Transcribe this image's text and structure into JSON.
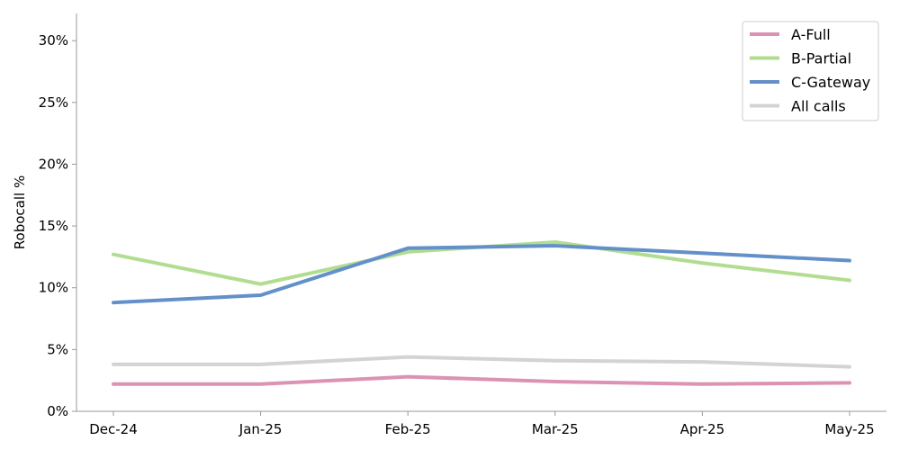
{
  "chart_data": {
    "type": "line",
    "title": "",
    "xlabel": "",
    "ylabel": "Robocall %",
    "categories": [
      "Dec-24",
      "Jan-25",
      "Feb-25",
      "Mar-25",
      "Apr-25",
      "May-25"
    ],
    "y_ticks": [
      "0%",
      "5%",
      "10%",
      "15%",
      "20%",
      "25%",
      "30%"
    ],
    "y_tick_values": [
      0,
      5,
      10,
      15,
      20,
      25,
      30
    ],
    "ylim": [
      0,
      32.2
    ],
    "grid": false,
    "legend_position": "top-right",
    "series": [
      {
        "name": "A-Full",
        "color": "#dc92b3",
        "values": [
          2.2,
          2.2,
          2.8,
          2.4,
          2.2,
          2.3
        ]
      },
      {
        "name": "B-Partial",
        "color": "#b2dd90",
        "values": [
          12.7,
          10.3,
          12.9,
          13.7,
          12.0,
          10.6
        ]
      },
      {
        "name": "C-Gateway",
        "color": "#6390c8",
        "values": [
          8.8,
          9.4,
          13.2,
          13.4,
          12.8,
          12.2
        ]
      },
      {
        "name": "All calls",
        "color": "#d3d3d3",
        "values": [
          3.8,
          3.8,
          4.4,
          4.1,
          4.0,
          3.6
        ]
      }
    ]
  }
}
